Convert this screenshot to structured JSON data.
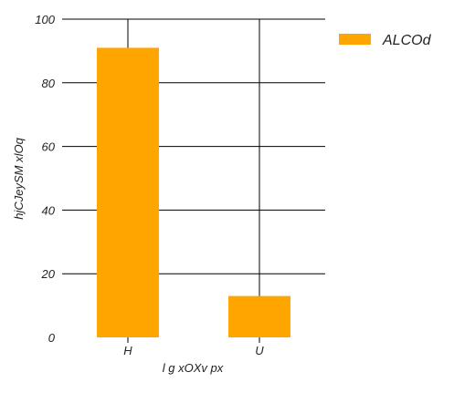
{
  "chart_data": {
    "type": "bar",
    "categories": [
      "H",
      "U"
    ],
    "series": [
      {
        "name": "ALCOd",
        "values": [
          91,
          13
        ],
        "color": "#FFA500"
      }
    ],
    "xlabel": "l g xOXv  px",
    "ylabel": "hjCJeySM xlOq",
    "ylim": [
      0,
      100
    ],
    "yticks": [
      0,
      20,
      40,
      60,
      80,
      100
    ],
    "grid": true,
    "legend_position": "top-right"
  }
}
